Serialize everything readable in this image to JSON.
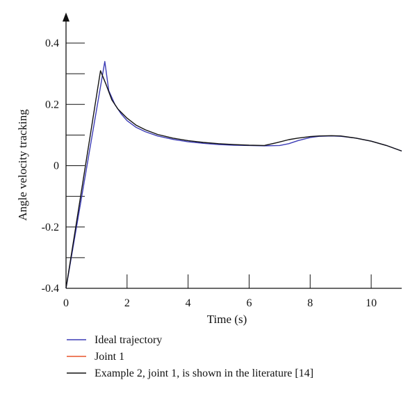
{
  "chart_data": {
    "type": "line",
    "title": "",
    "xlabel": "Time (s)",
    "ylabel": "Angle velocity tracking",
    "xlim": [
      0,
      11
    ],
    "ylim": [
      -0.4,
      0.45
    ],
    "x_ticks": [
      0,
      2,
      4,
      6,
      8,
      10
    ],
    "x_tick_labels": [
      "0",
      "2",
      "4",
      "6",
      "8",
      "10"
    ],
    "y_major_ticks": [
      -0.4,
      -0.2,
      0,
      0.2,
      0.4
    ],
    "y_tick_labels": [
      "-0.4",
      "-0.2",
      "0",
      "0.2",
      "0.4"
    ],
    "y_minor_ticks": [
      -0.3,
      -0.1,
      0.1,
      0.3
    ],
    "grid": false,
    "legend_position": "bottom",
    "series": [
      {
        "name": "Ideal trajectory",
        "color": "#3b3bb5",
        "x": [
          0,
          1.27,
          1.4,
          1.6,
          1.8,
          2.0,
          2.3,
          2.6,
          3.0,
          3.5,
          4.0,
          4.5,
          5.0,
          5.5,
          6.0,
          6.5,
          7.0,
          7.3,
          7.6,
          8.0,
          8.3,
          8.7,
          9.0,
          9.5,
          10.0,
          10.5,
          11.0
        ],
        "y": [
          -0.4,
          0.34,
          0.245,
          0.2,
          0.17,
          0.147,
          0.125,
          0.111,
          0.097,
          0.086,
          0.078,
          0.073,
          0.069,
          0.067,
          0.066,
          0.065,
          0.066,
          0.072,
          0.082,
          0.092,
          0.096,
          0.097,
          0.096,
          0.09,
          0.08,
          0.066,
          0.048
        ]
      },
      {
        "name": "Joint 1",
        "color": "#e8542a",
        "x": [],
        "y": []
      },
      {
        "name": "Example 2, joint 1, is shown in the literature [14]",
        "color": "#111111",
        "x": [
          0,
          1.13,
          1.3,
          1.5,
          1.7,
          2.0,
          2.3,
          2.6,
          3.0,
          3.5,
          4.0,
          4.5,
          5.0,
          5.5,
          6.0,
          6.5,
          6.9,
          7.3,
          7.6,
          8.0,
          8.3,
          8.7,
          9.0,
          9.5,
          10.0,
          10.5,
          11.0
        ],
        "y": [
          -0.4,
          0.31,
          0.268,
          0.215,
          0.185,
          0.155,
          0.132,
          0.117,
          0.102,
          0.09,
          0.082,
          0.076,
          0.072,
          0.069,
          0.067,
          0.066,
          0.075,
          0.085,
          0.09,
          0.095,
          0.097,
          0.098,
          0.097,
          0.09,
          0.08,
          0.066,
          0.048
        ]
      }
    ]
  }
}
